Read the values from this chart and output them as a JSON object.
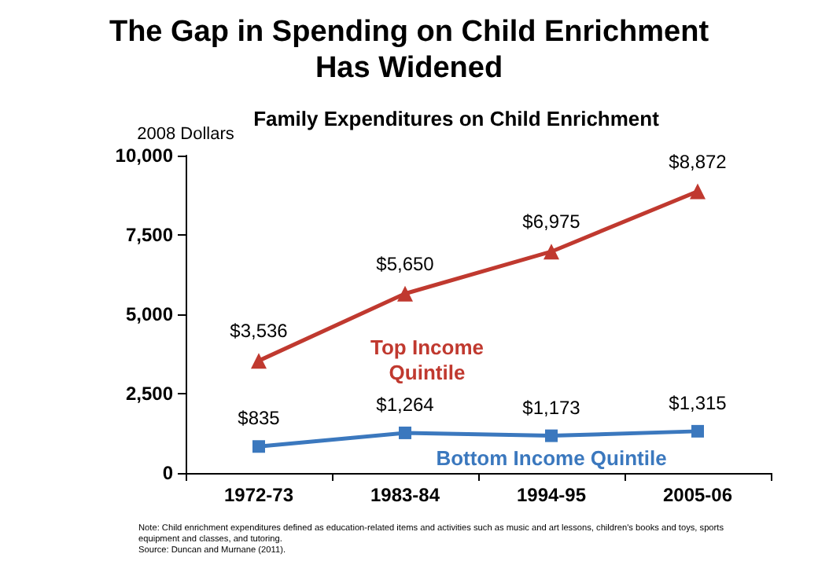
{
  "chart_data": {
    "type": "line",
    "title": "The Gap in Spending on Child Enrichment\nHas Widened",
    "subtitle": "Family Expenditures on Child Enrichment",
    "ylabel": "2008 Dollars",
    "categories": [
      "1972-73",
      "1983-84",
      "1994-95",
      "2005-06"
    ],
    "series": [
      {
        "name": "Top Income Quintile",
        "color": "#c0392f",
        "marker": "triangle",
        "values": [
          3536,
          5650,
          6975,
          8872
        ],
        "value_labels": [
          "$3,536",
          "$5,650",
          "$6,975",
          "$8,872"
        ]
      },
      {
        "name": "Bottom Income Quintile",
        "color": "#3b78be",
        "marker": "square",
        "values": [
          835,
          1264,
          1173,
          1315
        ],
        "value_labels": [
          "$835",
          "$1,264",
          "$1,173",
          "$1,315"
        ]
      }
    ],
    "ylim": [
      0,
      10000
    ],
    "yticks": [
      {
        "value": 0,
        "label": "0"
      },
      {
        "value": 2500,
        "label": "2,500"
      },
      {
        "value": 5000,
        "label": "5,000"
      },
      {
        "value": 7500,
        "label": "7,500"
      },
      {
        "value": 10000,
        "label": "10,000"
      }
    ],
    "grid": false,
    "legend": false,
    "annotations": [
      "Note: Child enrichment expenditures defined as education-related items and activities such as music and art lessons, children's books and toys, sports\nequipment and classes, and tutoring.\nSource: Duncan and Murnane (2011)."
    ]
  }
}
